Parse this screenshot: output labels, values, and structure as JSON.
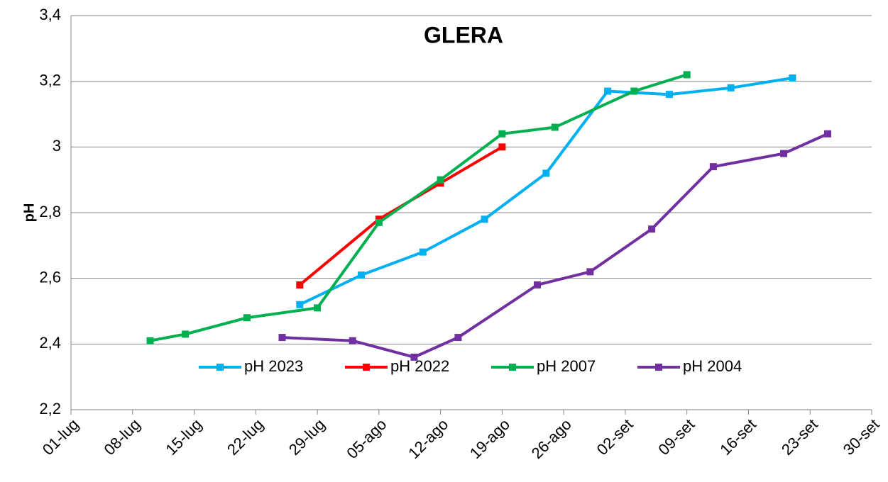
{
  "chart_data": {
    "type": "line",
    "title": "GLERA",
    "y_label": "pH",
    "ylim": [
      2.2,
      3.4
    ],
    "yticks": [
      {
        "value": 2.2,
        "label": "2,2"
      },
      {
        "value": 2.4,
        "label": "2,4"
      },
      {
        "value": 2.6,
        "label": "2,6"
      },
      {
        "value": 2.8,
        "label": "2,8"
      },
      3,
      {
        "value": 3.2,
        "label": "3,2"
      },
      {
        "value": 3.4,
        "label": "3,4"
      }
    ],
    "xticks": [
      "01-lug",
      "08-lug",
      "15-lug",
      "22-lug",
      "29-lug",
      "05-ago",
      "12-ago",
      "19-ago",
      "26-ago",
      "02-set",
      "09-set",
      "16-set",
      "23-set",
      "30-set"
    ],
    "grid": true,
    "legend": "bottom",
    "series": [
      {
        "name": "pH 2023",
        "color": "#00b0f0",
        "x": [
          "27-lug",
          "03-ago",
          "10-ago",
          "17-ago",
          "24-ago",
          "31-ago",
          "07-set",
          "14-set",
          "21-set"
        ],
        "values": [
          2.52,
          2.61,
          2.68,
          2.78,
          2.92,
          3.17,
          3.16,
          3.18,
          3.21
        ]
      },
      {
        "name": "pH 2022",
        "color": "#ff0000",
        "x": [
          "27-lug",
          "05-ago",
          "12-ago",
          "19-ago"
        ],
        "values": [
          2.58,
          2.78,
          2.89,
          3.0
        ]
      },
      {
        "name": "pH 2007",
        "color": "#00b050",
        "x": [
          "10-lug",
          "14-lug",
          "21-lug",
          "29-lug",
          "05-ago",
          "12-ago",
          "19-ago",
          "25-ago",
          "03-set",
          "09-set"
        ],
        "values": [
          2.41,
          2.43,
          2.48,
          2.51,
          2.77,
          2.9,
          3.04,
          3.06,
          3.17,
          3.22
        ]
      },
      {
        "name": "pH 2004",
        "color": "#7030a0",
        "x": [
          "25-lug",
          "02-ago",
          "09-ago",
          "14-ago",
          "23-ago",
          "29-ago",
          "05-set",
          "12-set",
          "20-set",
          "25-set"
        ],
        "values": [
          2.42,
          2.41,
          2.36,
          2.42,
          2.58,
          2.62,
          2.75,
          2.94,
          2.98,
          3.04
        ]
      }
    ]
  }
}
